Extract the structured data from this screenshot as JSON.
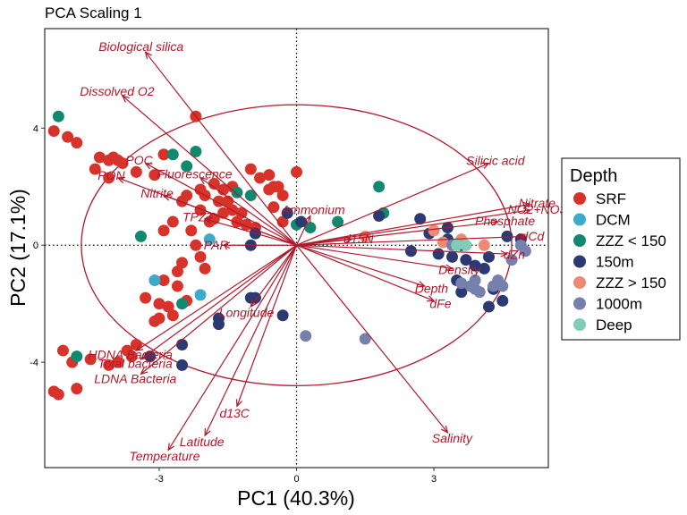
{
  "chart_data": {
    "type": "scatter",
    "subtype": "pca-biplot",
    "title": "PCA Scaling 1",
    "xlabel": "PC1 (40.3%)",
    "ylabel": "PC2 (17.1%)",
    "xlim": [
      -5.5,
      5.5
    ],
    "ylim": [
      -7.6,
      7.4
    ],
    "xticks": [
      -3,
      0,
      3
    ],
    "yticks": [
      -4,
      0,
      4
    ],
    "grid": false,
    "reference_lines": {
      "x": 0,
      "y": 0,
      "style": "dotted"
    },
    "ellipse": {
      "cx": 0,
      "cy": 0,
      "rx": 4.7,
      "ry": 4.8,
      "color": "#b2182b"
    },
    "arrow_color": "#b2182b",
    "legend": {
      "title": "Depth",
      "position": "right",
      "items": [
        {
          "label": "SRF",
          "color": "#d7332a"
        },
        {
          "label": "DCM",
          "color": "#3eaac9"
        },
        {
          "label": "ZZZ < 150",
          "color": "#12896e"
        },
        {
          "label": "150m",
          "color": "#2b3a73"
        },
        {
          "label": "ZZZ > 150",
          "color": "#ef8a72"
        },
        {
          "label": "1000m",
          "color": "#7680ad"
        },
        {
          "label": "Deep",
          "color": "#7fcdb6"
        }
      ]
    },
    "loadings": [
      {
        "label": "Biological silica",
        "x": -3.3,
        "y": 6.6
      },
      {
        "label": "Dissolved O2",
        "x": -3.8,
        "y": 5.1
      },
      {
        "label": "POC",
        "x": -3.3,
        "y": 2.8
      },
      {
        "label": "PON",
        "x": -3.9,
        "y": 2.3
      },
      {
        "label": "Fluorescence",
        "x": -2.1,
        "y": 2.3
      },
      {
        "label": "Nitrite",
        "x": -2.9,
        "y": 1.7
      },
      {
        "label": "TPZT",
        "x": -2.0,
        "y": 0.9
      },
      {
        "label": "PAR",
        "x": -1.6,
        "y": 0.0
      },
      {
        "label": "Ammonium",
        "x": 0.3,
        "y": 1.0
      },
      {
        "label": "d15N",
        "x": 1.2,
        "y": 0.2
      },
      {
        "label": "Silicic acid",
        "x": 4.2,
        "y": 2.8
      },
      {
        "label": "Nitrate",
        "x": 5.1,
        "y": 1.4
      },
      {
        "label": "NO2+NO3",
        "x": 5.1,
        "y": 1.2
      },
      {
        "label": "Phosphate",
        "x": 4.4,
        "y": 0.8
      },
      {
        "label": "dCd",
        "x": 5.0,
        "y": 0.3
      },
      {
        "label": "dZn",
        "x": 4.6,
        "y": -0.3
      },
      {
        "label": "Density",
        "x": 3.4,
        "y": -0.8
      },
      {
        "label": "Depth",
        "x": 2.8,
        "y": -1.4
      },
      {
        "label": "dFe",
        "x": 3.0,
        "y": -1.9
      },
      {
        "label": "Salinity",
        "x": 3.3,
        "y": -6.4
      },
      {
        "label": "Longitude",
        "x": -1.0,
        "y": -2.1
      },
      {
        "label": "HDNA Bacteria",
        "x": -3.5,
        "y": -3.6
      },
      {
        "label": "Total bacteria",
        "x": -3.4,
        "y": -3.9
      },
      {
        "label": "LDNA Bacteria",
        "x": -3.4,
        "y": -4.4
      },
      {
        "label": "d13C",
        "x": -1.3,
        "y": -5.5
      },
      {
        "label": "Latitude",
        "x": -2.0,
        "y": -6.5
      },
      {
        "label": "Temperature",
        "x": -2.8,
        "y": -7.0
      }
    ],
    "series": [
      {
        "name": "SRF",
        "points": [
          [
            -5.3,
            3.9
          ],
          [
            -5.0,
            3.7
          ],
          [
            -4.8,
            3.5
          ],
          [
            -4.0,
            3.0
          ],
          [
            -3.9,
            2.9
          ],
          [
            -4.3,
            3.0
          ],
          [
            -4.1,
            2.9
          ],
          [
            -3.8,
            2.8
          ],
          [
            -4.4,
            2.6
          ],
          [
            -4.1,
            2.3
          ],
          [
            -2.9,
            3.1
          ],
          [
            -3.5,
            2.5
          ],
          [
            -2.2,
            4.4
          ],
          [
            -3.1,
            2.4
          ],
          [
            -1.8,
            2.1
          ],
          [
            -1.6,
            1.9
          ],
          [
            -1.4,
            2.0
          ],
          [
            -2.1,
            1.9
          ],
          [
            -2.0,
            1.7
          ],
          [
            -1.7,
            1.5
          ],
          [
            -1.5,
            1.5
          ],
          [
            -1.4,
            1.2
          ],
          [
            -1.2,
            1.1
          ],
          [
            -1.3,
            0.8
          ],
          [
            -2.4,
            1.7
          ],
          [
            -2.5,
            1.5
          ],
          [
            -2.1,
            1.2
          ],
          [
            -1.8,
            0.9
          ],
          [
            -1.6,
            1.1
          ],
          [
            -1.9,
            0.8
          ],
          [
            -1.1,
            0.7
          ],
          [
            -0.9,
            0.6
          ],
          [
            -0.6,
            2.4
          ],
          [
            -0.5,
            2.0
          ],
          [
            -0.6,
            1.9
          ],
          [
            -0.3,
            1.7
          ],
          [
            -0.5,
            1.3
          ],
          [
            -1.0,
            2.6
          ],
          [
            -0.8,
            2.3
          ],
          [
            0.0,
            2.5
          ],
          [
            -0.4,
            2.0
          ],
          [
            -0.3,
            0.8
          ],
          [
            -2.7,
            0.8
          ],
          [
            -2.9,
            0.5
          ],
          [
            -2.3,
            0.5
          ],
          [
            -2.2,
            0.0
          ],
          [
            -2.1,
            -0.4
          ],
          [
            -2.0,
            -0.8
          ],
          [
            -2.5,
            -0.6
          ],
          [
            -2.6,
            -0.9
          ],
          [
            -2.9,
            -1.2
          ],
          [
            -3.3,
            -1.8
          ],
          [
            -3.0,
            -2.0
          ],
          [
            -2.6,
            -1.4
          ],
          [
            -2.4,
            -1.9
          ],
          [
            -2.8,
            -2.1
          ],
          [
            -2.7,
            -2.4
          ],
          [
            -3.0,
            -2.5
          ],
          [
            -3.1,
            -2.6
          ],
          [
            -3.5,
            -3.4
          ],
          [
            -3.6,
            -3.8
          ],
          [
            -3.9,
            -4.0
          ],
          [
            -4.1,
            -4.1
          ],
          [
            -4.5,
            -3.9
          ],
          [
            -5.1,
            -3.6
          ],
          [
            -4.9,
            -4.0
          ],
          [
            -5.3,
            -5.0
          ],
          [
            -5.2,
            -5.1
          ],
          [
            -4.8,
            -4.9
          ],
          [
            -3.7,
            -3.6
          ]
        ]
      },
      {
        "name": "DCM",
        "points": [
          [
            -1.9,
            0.2
          ],
          [
            -3.1,
            -1.2
          ],
          [
            -2.1,
            -1.7
          ]
        ]
      },
      {
        "name": "ZZZ < 150",
        "points": [
          [
            -5.2,
            4.4
          ],
          [
            -2.7,
            3.1
          ],
          [
            -2.2,
            3.2
          ],
          [
            -2.4,
            2.7
          ],
          [
            -1.3,
            1.8
          ],
          [
            -1.0,
            1.7
          ],
          [
            0.0,
            0.7
          ],
          [
            0.3,
            0.6
          ],
          [
            0.9,
            0.8
          ],
          [
            -3.4,
            0.3
          ],
          [
            -2.5,
            -2.0
          ],
          [
            -4.8,
            -3.8
          ],
          [
            1.8,
            2.0
          ],
          [
            1.9,
            1.1
          ]
        ]
      },
      {
        "name": "150m",
        "points": [
          [
            -0.2,
            1.1
          ],
          [
            0.1,
            0.8
          ],
          [
            -0.9,
            0.4
          ],
          [
            -1.0,
            0.0
          ],
          [
            -0.9,
            -1.8
          ],
          [
            -1.0,
            -1.8
          ],
          [
            -1.7,
            -2.5
          ],
          [
            -1.7,
            -2.7
          ],
          [
            -2.5,
            -3.4
          ],
          [
            -3.2,
            -3.8
          ],
          [
            -2.5,
            -4.1
          ],
          [
            -0.3,
            -2.4
          ],
          [
            1.8,
            1.0
          ],
          [
            2.7,
            0.9
          ],
          [
            2.9,
            0.4
          ],
          [
            3.3,
            0.2
          ],
          [
            3.6,
            0.0
          ],
          [
            3.1,
            -0.3
          ],
          [
            3.4,
            -0.4
          ],
          [
            3.7,
            -0.5
          ],
          [
            3.9,
            -0.7
          ],
          [
            4.1,
            -0.8
          ],
          [
            4.2,
            -0.4
          ],
          [
            3.5,
            -1.2
          ],
          [
            3.6,
            -1.6
          ],
          [
            4.3,
            -1.5
          ],
          [
            4.5,
            -1.9
          ],
          [
            4.2,
            -2.1
          ],
          [
            4.9,
            0.2
          ],
          [
            4.6,
            0.3
          ],
          [
            3.3,
            0.6
          ],
          [
            2.5,
            -0.2
          ]
        ]
      },
      {
        "name": "ZZZ > 150",
        "points": [
          [
            1.5,
            0.3
          ],
          [
            3.0,
            0.5
          ],
          [
            3.6,
            0.2
          ],
          [
            3.2,
            0.1
          ],
          [
            4.1,
            0.0
          ]
        ]
      },
      {
        "name": "1000m",
        "points": [
          [
            3.9,
            -1.2
          ],
          [
            3.8,
            -1.4
          ],
          [
            3.6,
            -1.3
          ],
          [
            3.9,
            -1.5
          ],
          [
            4.0,
            -1.6
          ],
          [
            4.3,
            -1.4
          ],
          [
            4.4,
            -1.2
          ],
          [
            4.5,
            -1.4
          ],
          [
            4.7,
            -0.5
          ],
          [
            4.9,
            0.0
          ],
          [
            5.0,
            -0.2
          ],
          [
            0.2,
            -3.1
          ],
          [
            1.5,
            -3.2
          ],
          [
            3.4,
            0.0
          ]
        ]
      },
      {
        "name": "Deep",
        "points": [
          [
            3.7,
            0.0
          ],
          [
            3.5,
            0.0
          ]
        ]
      }
    ]
  }
}
